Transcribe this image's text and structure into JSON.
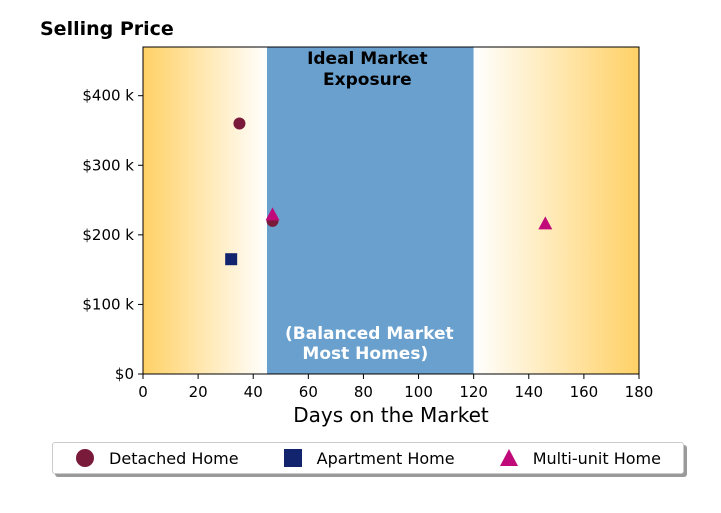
{
  "chart_data": {
    "type": "scatter",
    "title": "Selling Price",
    "xlabel": "Days on the Market",
    "ylabel": "",
    "xlim": [
      0,
      180
    ],
    "ylim": [
      0,
      470000
    ],
    "x_ticks": [
      0,
      20,
      40,
      60,
      80,
      100,
      120,
      140,
      160,
      180
    ],
    "x_tick_labels": [
      "0",
      "20",
      "40",
      "60",
      "80",
      "100",
      "120",
      "140",
      "160",
      "180"
    ],
    "y_ticks": [
      0,
      100000,
      200000,
      300000,
      400000
    ],
    "y_tick_labels": [
      "$0",
      "$100 k",
      "$200 k",
      "$300 k",
      "$400 k"
    ],
    "grid": false,
    "legend_position": "bottom",
    "zones": {
      "ideal_range": [
        45,
        120
      ],
      "ideal_color": "#6aa0cd",
      "edge_color": "#ffd166",
      "top_label_line1": "Ideal Market",
      "top_label_line2": "Exposure",
      "bottom_label_line1": "(Balanced Market",
      "bottom_label_line2": "Most Homes)"
    },
    "series": [
      {
        "name": "Detached Home",
        "marker": "circle",
        "color": "#7a1a3a",
        "points": [
          [
            35,
            360000
          ],
          [
            47,
            220000
          ]
        ]
      },
      {
        "name": "Apartment Home",
        "marker": "square",
        "color": "#13246e",
        "points": [
          [
            32,
            165000
          ]
        ]
      },
      {
        "name": "Multi-unit Home",
        "marker": "triangle",
        "color": "#c00a7a",
        "points": [
          [
            47,
            228000
          ],
          [
            146,
            215000
          ]
        ]
      }
    ]
  }
}
